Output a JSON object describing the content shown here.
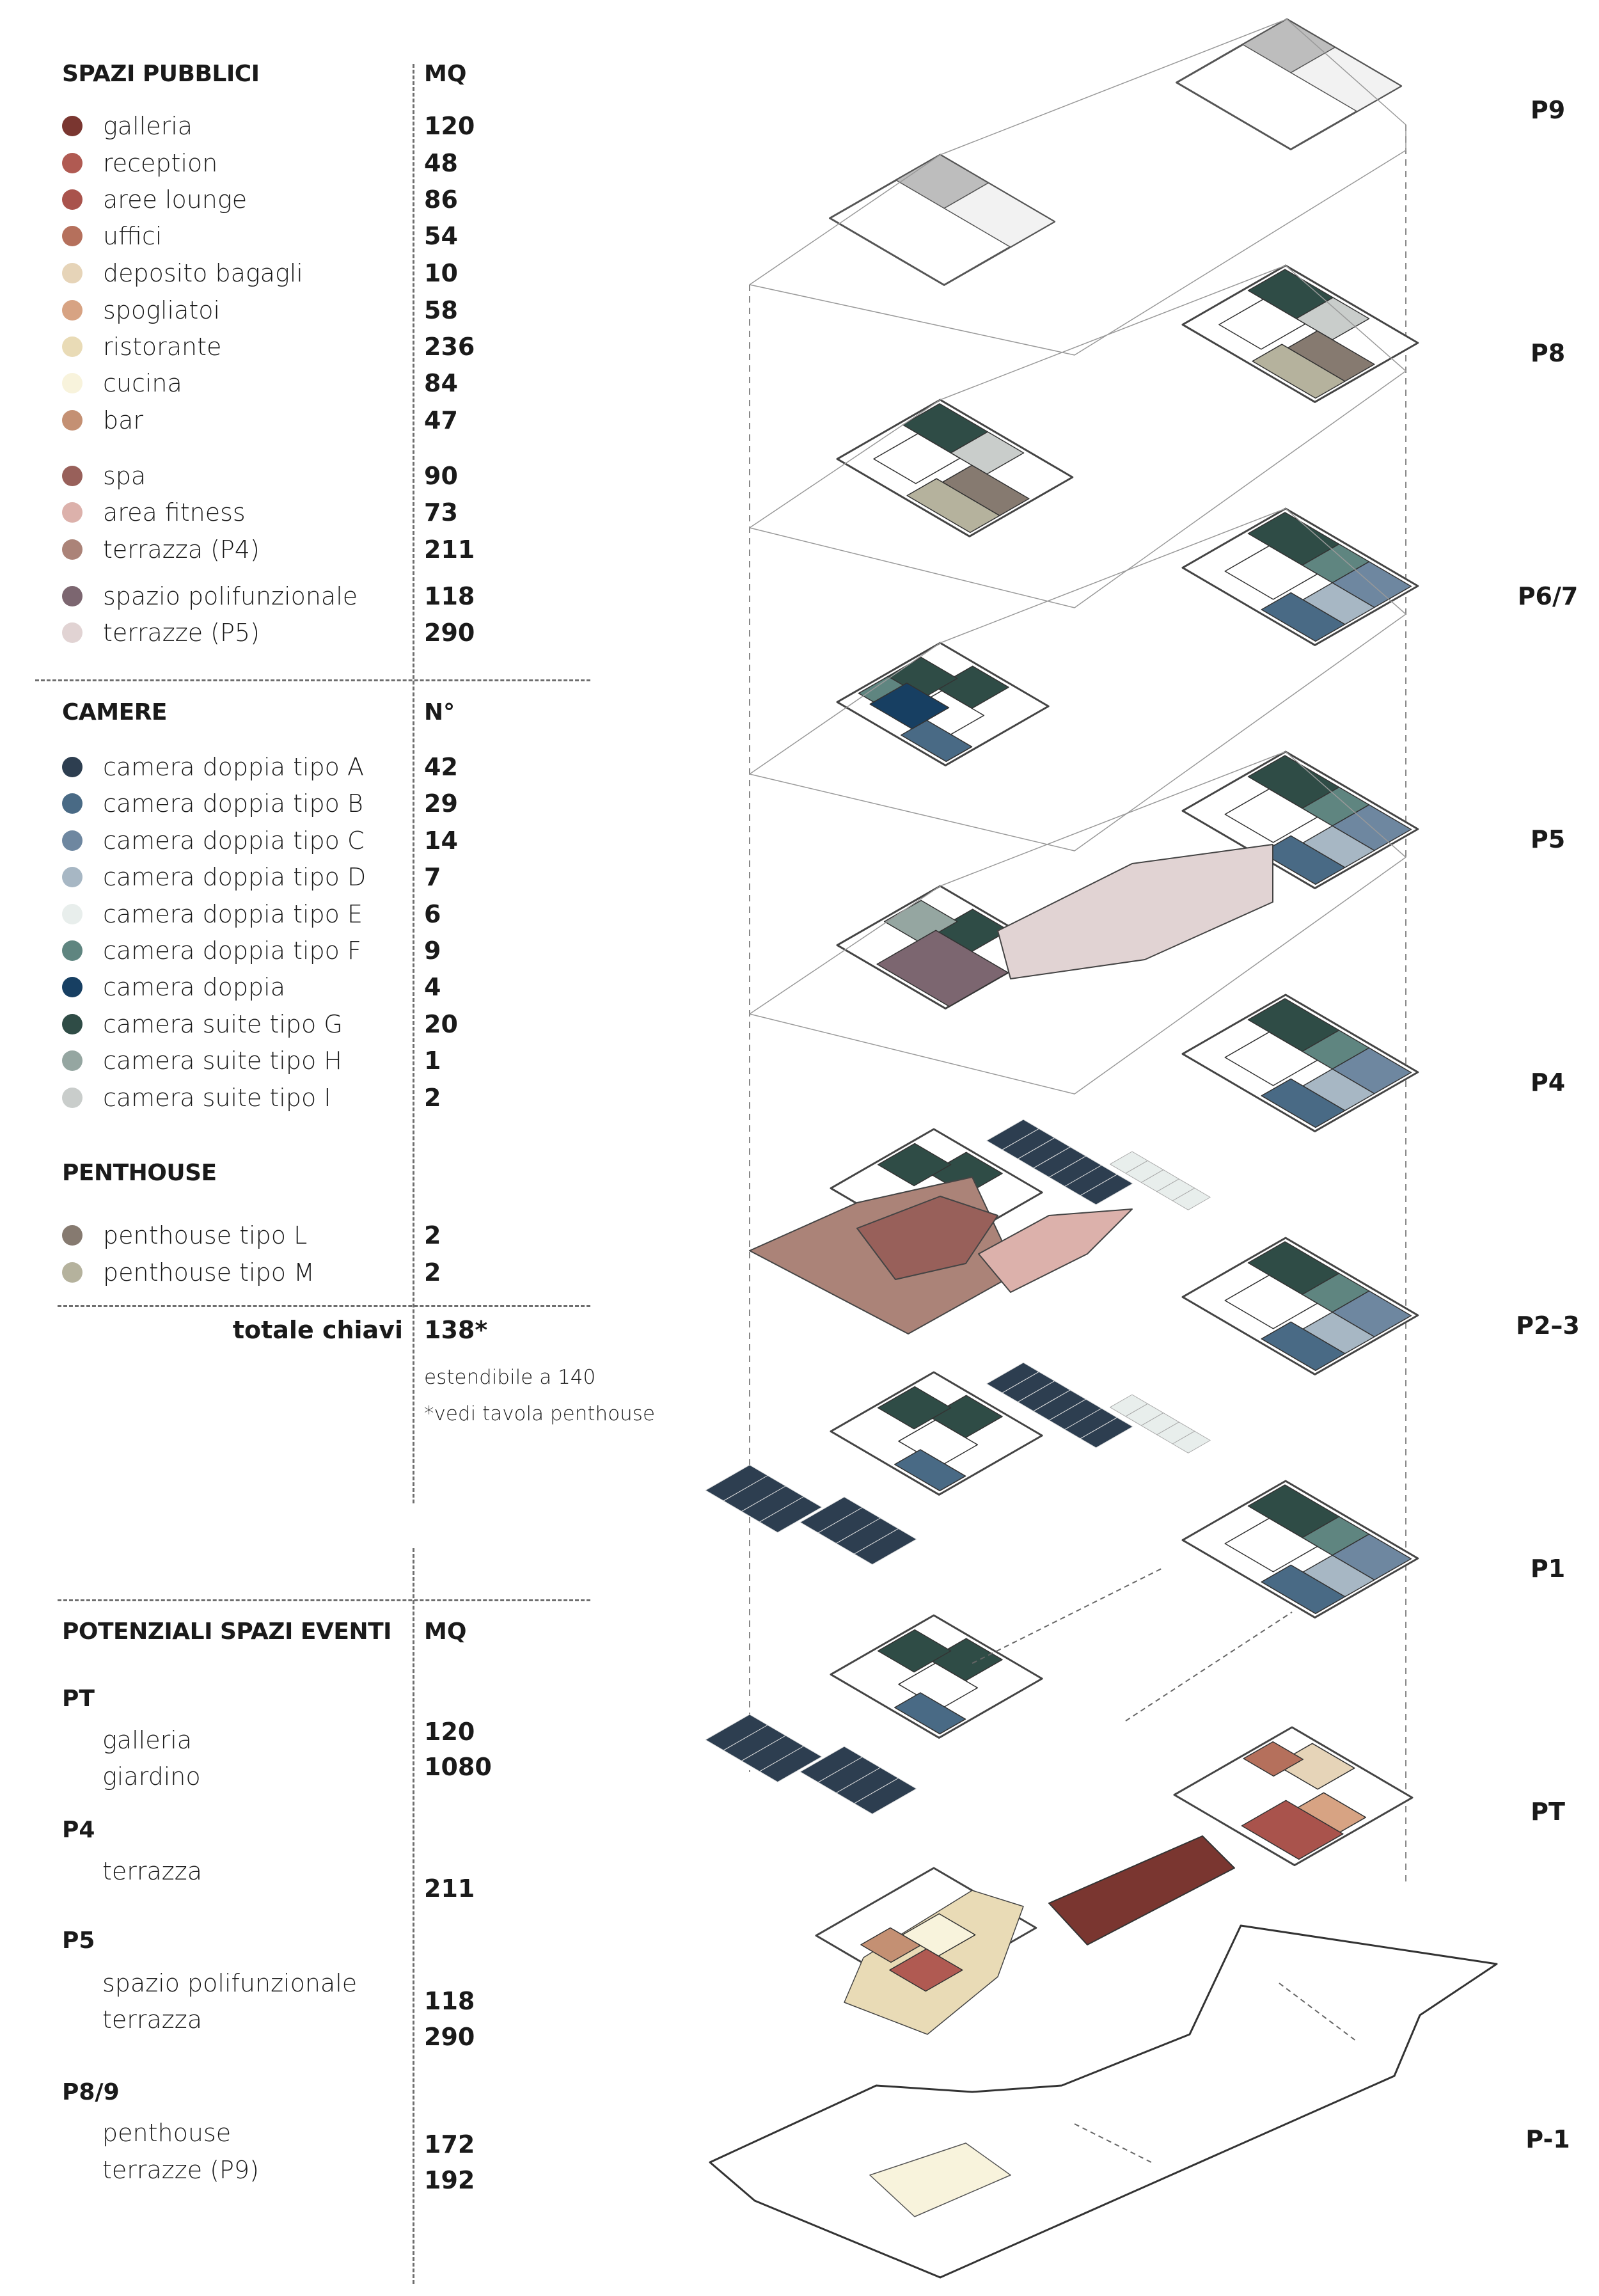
{
  "public_spaces": {
    "title": "SPAZI PUBBLICI",
    "unit": "MQ",
    "groups": [
      [
        {
          "label": "galleria",
          "value": "120",
          "color": "#7a3630"
        },
        {
          "label": "reception",
          "value": "48",
          "color": "#b05a52"
        },
        {
          "label": "aree lounge",
          "value": "86",
          "color": "#a9534c"
        },
        {
          "label": "uffici",
          "value": "54",
          "color": "#b5705c"
        },
        {
          "label": "deposito bagagli",
          "value": "10",
          "color": "#e6d4b8"
        },
        {
          "label": "spogliatoi",
          "value": "58",
          "color": "#d7a383"
        },
        {
          "label": "ristorante",
          "value": "236",
          "color": "#e9dbb6"
        },
        {
          "label": "cucina",
          "value": "84",
          "color": "#f8f3dc"
        },
        {
          "label": "bar",
          "value": "47",
          "color": "#c49073"
        }
      ],
      [
        {
          "label": "spa",
          "value": "90",
          "color": "#98605a"
        },
        {
          "label": "area fitness",
          "value": "73",
          "color": "#dcb1ab"
        },
        {
          "label": "terrazza (P4)",
          "value": "211",
          "color": "#ab8378"
        }
      ],
      [
        {
          "label": "spazio polifunzionale",
          "value": "118",
          "color": "#7c6670"
        },
        {
          "label": "terrazze (P5)",
          "value": "290",
          "color": "#e1d3d3"
        }
      ]
    ]
  },
  "rooms": {
    "title": "CAMERE",
    "unit": "N°",
    "items": [
      {
        "label": "camera doppia tipo A",
        "value": "42",
        "color": "#2d3e50"
      },
      {
        "label": "camera doppia tipo B",
        "value": "29",
        "color": "#496a85"
      },
      {
        "label": "camera doppia tipo C",
        "value": "14",
        "color": "#6e87a0"
      },
      {
        "label": "camera doppia tipo D",
        "value": "7",
        "color": "#a7b7c4"
      },
      {
        "label": "camera doppia tipo E",
        "value": "6",
        "color": "#e8eeec"
      },
      {
        "label": "camera doppia tipo F",
        "value": "9",
        "color": "#5f8580"
      },
      {
        "label": "camera doppia",
        "value": "4",
        "color": "#173f62"
      },
      {
        "label": "camera suite tipo G",
        "value": "20",
        "color": "#2f4c46"
      },
      {
        "label": "camera suite tipo H",
        "value": "1",
        "color": "#95a6a1"
      },
      {
        "label": "camera suite tipo I",
        "value": "2",
        "color": "#c9cdcb"
      }
    ]
  },
  "penthouse": {
    "title": "PENTHOUSE",
    "items": [
      {
        "label": "penthouse tipo L",
        "value": "2",
        "color": "#867a70"
      },
      {
        "label": "penthouse tipo M",
        "value": "2",
        "color": "#b5b29d"
      }
    ]
  },
  "total": {
    "label": "totale chiavi",
    "value": "138*",
    "note1": "estendibile a 140",
    "note2": "*vedi tavola penthouse"
  },
  "events": {
    "title": "POTENZIALI SPAZI EVENTI",
    "unit": "MQ",
    "groups": [
      {
        "level": "PT",
        "items": [
          {
            "label": "galleria",
            "value": "120"
          },
          {
            "label": "giardino",
            "value": "1080"
          }
        ]
      },
      {
        "level": "P4",
        "items": [
          {
            "label": "terrazza",
            "value": "211"
          }
        ]
      },
      {
        "level": "P5",
        "items": [
          {
            "label": "spazio polifunzionale",
            "value": "118"
          },
          {
            "label": "terrazza",
            "value": "290"
          }
        ]
      },
      {
        "level": "P8/9",
        "items": [
          {
            "label": "penthouse",
            "value": "172"
          },
          {
            "label": "terrazze (P9)",
            "value": "192"
          }
        ]
      }
    ]
  },
  "floors": [
    "P9",
    "P8",
    "P6/7",
    "P5",
    "P4",
    "P2–3",
    "P1",
    "PT",
    "P-1"
  ]
}
